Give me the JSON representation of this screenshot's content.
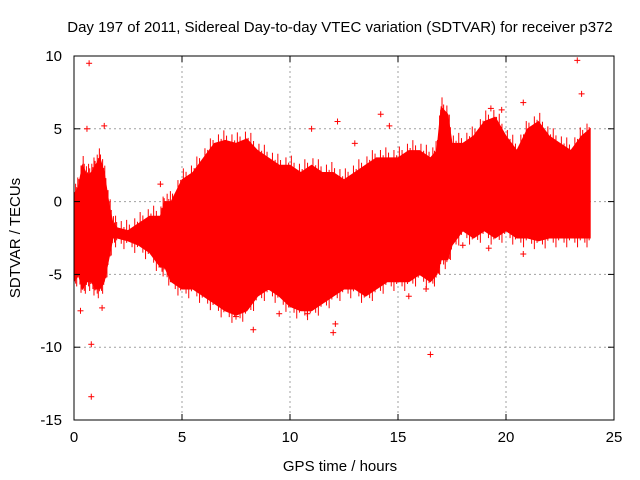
{
  "chart_data": {
    "type": "scatter",
    "title": "Day 197 of 2011, Sidereal Day-to-day VTEC variation (SDTVAR) for receiver p372",
    "xlabel": "GPS time / hours",
    "ylabel": "SDTVAR / TECUs",
    "xlim": [
      0,
      25
    ],
    "ylim": [
      -15,
      10
    ],
    "xticks": [
      0,
      5,
      10,
      15,
      20,
      25
    ],
    "xtick_labels": [
      "0",
      "5",
      "10",
      "15",
      "20",
      "25"
    ],
    "yticks": [
      -15,
      -10,
      -5,
      0,
      5,
      10
    ],
    "ytick_labels": [
      "-15",
      "-10",
      "-5",
      "0",
      "5",
      "10"
    ],
    "grid": true,
    "marker": "+",
    "color": "#ff0000",
    "envelope": {
      "x": [
        0.0,
        0.2,
        0.4,
        0.6,
        0.8,
        1.0,
        1.2,
        1.4,
        1.6,
        1.8,
        2.0,
        2.5,
        3.0,
        3.5,
        4.0,
        4.2,
        4.5,
        5.0,
        5.5,
        6.0,
        6.5,
        7.0,
        7.5,
        8.0,
        8.5,
        9.0,
        9.5,
        10.0,
        10.5,
        11.0,
        11.5,
        12.0,
        12.5,
        13.0,
        13.5,
        14.0,
        14.5,
        15.0,
        15.5,
        16.0,
        16.5,
        16.8,
        17.0,
        17.3,
        17.5,
        18.0,
        18.5,
        19.0,
        19.5,
        20.0,
        20.5,
        21.0,
        21.5,
        22.0,
        22.5,
        23.0,
        23.5,
        23.9
      ],
      "upper": [
        0.5,
        1.0,
        2.5,
        1.8,
        2.0,
        2.5,
        3.0,
        2.0,
        0.0,
        -1.5,
        -1.8,
        -2.0,
        -1.5,
        -1.0,
        -1.0,
        0.0,
        0.0,
        1.5,
        2.0,
        3.0,
        4.0,
        4.2,
        4.0,
        4.3,
        3.5,
        3.0,
        2.5,
        2.5,
        2.0,
        2.5,
        2.0,
        2.0,
        1.5,
        2.0,
        2.5,
        3.0,
        3.0,
        3.0,
        3.5,
        3.5,
        3.0,
        3.5,
        6.5,
        6.0,
        4.0,
        4.0,
        4.5,
        5.5,
        5.8,
        4.5,
        3.5,
        5.0,
        5.5,
        4.5,
        4.0,
        3.5,
        4.5,
        5.0
      ],
      "lower": [
        -5.5,
        -5.0,
        -6.0,
        -5.5,
        -5.5,
        -6.0,
        -6.0,
        -5.5,
        -4.0,
        -2.5,
        -2.5,
        -2.7,
        -3.0,
        -3.5,
        -4.5,
        -4.5,
        -5.5,
        -6.0,
        -6.0,
        -6.5,
        -7.0,
        -7.5,
        -7.8,
        -7.5,
        -6.5,
        -6.0,
        -6.5,
        -7.2,
        -7.5,
        -7.5,
        -7.0,
        -6.5,
        -6.0,
        -6.0,
        -6.5,
        -6.0,
        -5.5,
        -5.5,
        -5.5,
        -5.0,
        -5.5,
        -5.0,
        -4.0,
        -4.0,
        -3.0,
        -2.0,
        -2.5,
        -2.0,
        -2.5,
        -2.0,
        -2.5,
        -2.5,
        -2.7,
        -2.5,
        -2.5,
        -2.5,
        -2.5,
        -2.5
      ]
    },
    "outliers": [
      {
        "x": 0.7,
        "y": 9.5
      },
      {
        "x": 23.3,
        "y": 9.7
      },
      {
        "x": 23.5,
        "y": 7.4
      },
      {
        "x": 0.8,
        "y": -9.8
      },
      {
        "x": 0.8,
        "y": -13.4
      },
      {
        "x": 1.3,
        "y": -7.3
      },
      {
        "x": 12.0,
        "y": -9.0
      },
      {
        "x": 12.1,
        "y": -8.4
      },
      {
        "x": 8.3,
        "y": -8.8
      },
      {
        "x": 16.5,
        "y": -10.5
      },
      {
        "x": 20.8,
        "y": -3.6
      },
      {
        "x": 12.2,
        "y": 5.5
      },
      {
        "x": 14.2,
        "y": 6.0
      },
      {
        "x": 14.6,
        "y": 5.2
      },
      {
        "x": 4.0,
        "y": 1.2
      },
      {
        "x": 11.0,
        "y": 5.0
      },
      {
        "x": 13.0,
        "y": 4.0
      },
      {
        "x": 19.3,
        "y": 6.4
      },
      {
        "x": 19.8,
        "y": 6.3
      },
      {
        "x": 20.8,
        "y": 6.8
      },
      {
        "x": 0.6,
        "y": 5.0
      },
      {
        "x": 1.4,
        "y": 5.2
      },
      {
        "x": 0.3,
        "y": -7.5
      },
      {
        "x": 18.0,
        "y": -3.0
      },
      {
        "x": 19.2,
        "y": -3.2
      },
      {
        "x": 9.5,
        "y": -7.7
      },
      {
        "x": 7.5,
        "y": -7.9
      },
      {
        "x": 10.8,
        "y": -7.7
      },
      {
        "x": 15.5,
        "y": -6.5
      },
      {
        "x": 16.3,
        "y": -6.0
      }
    ]
  }
}
